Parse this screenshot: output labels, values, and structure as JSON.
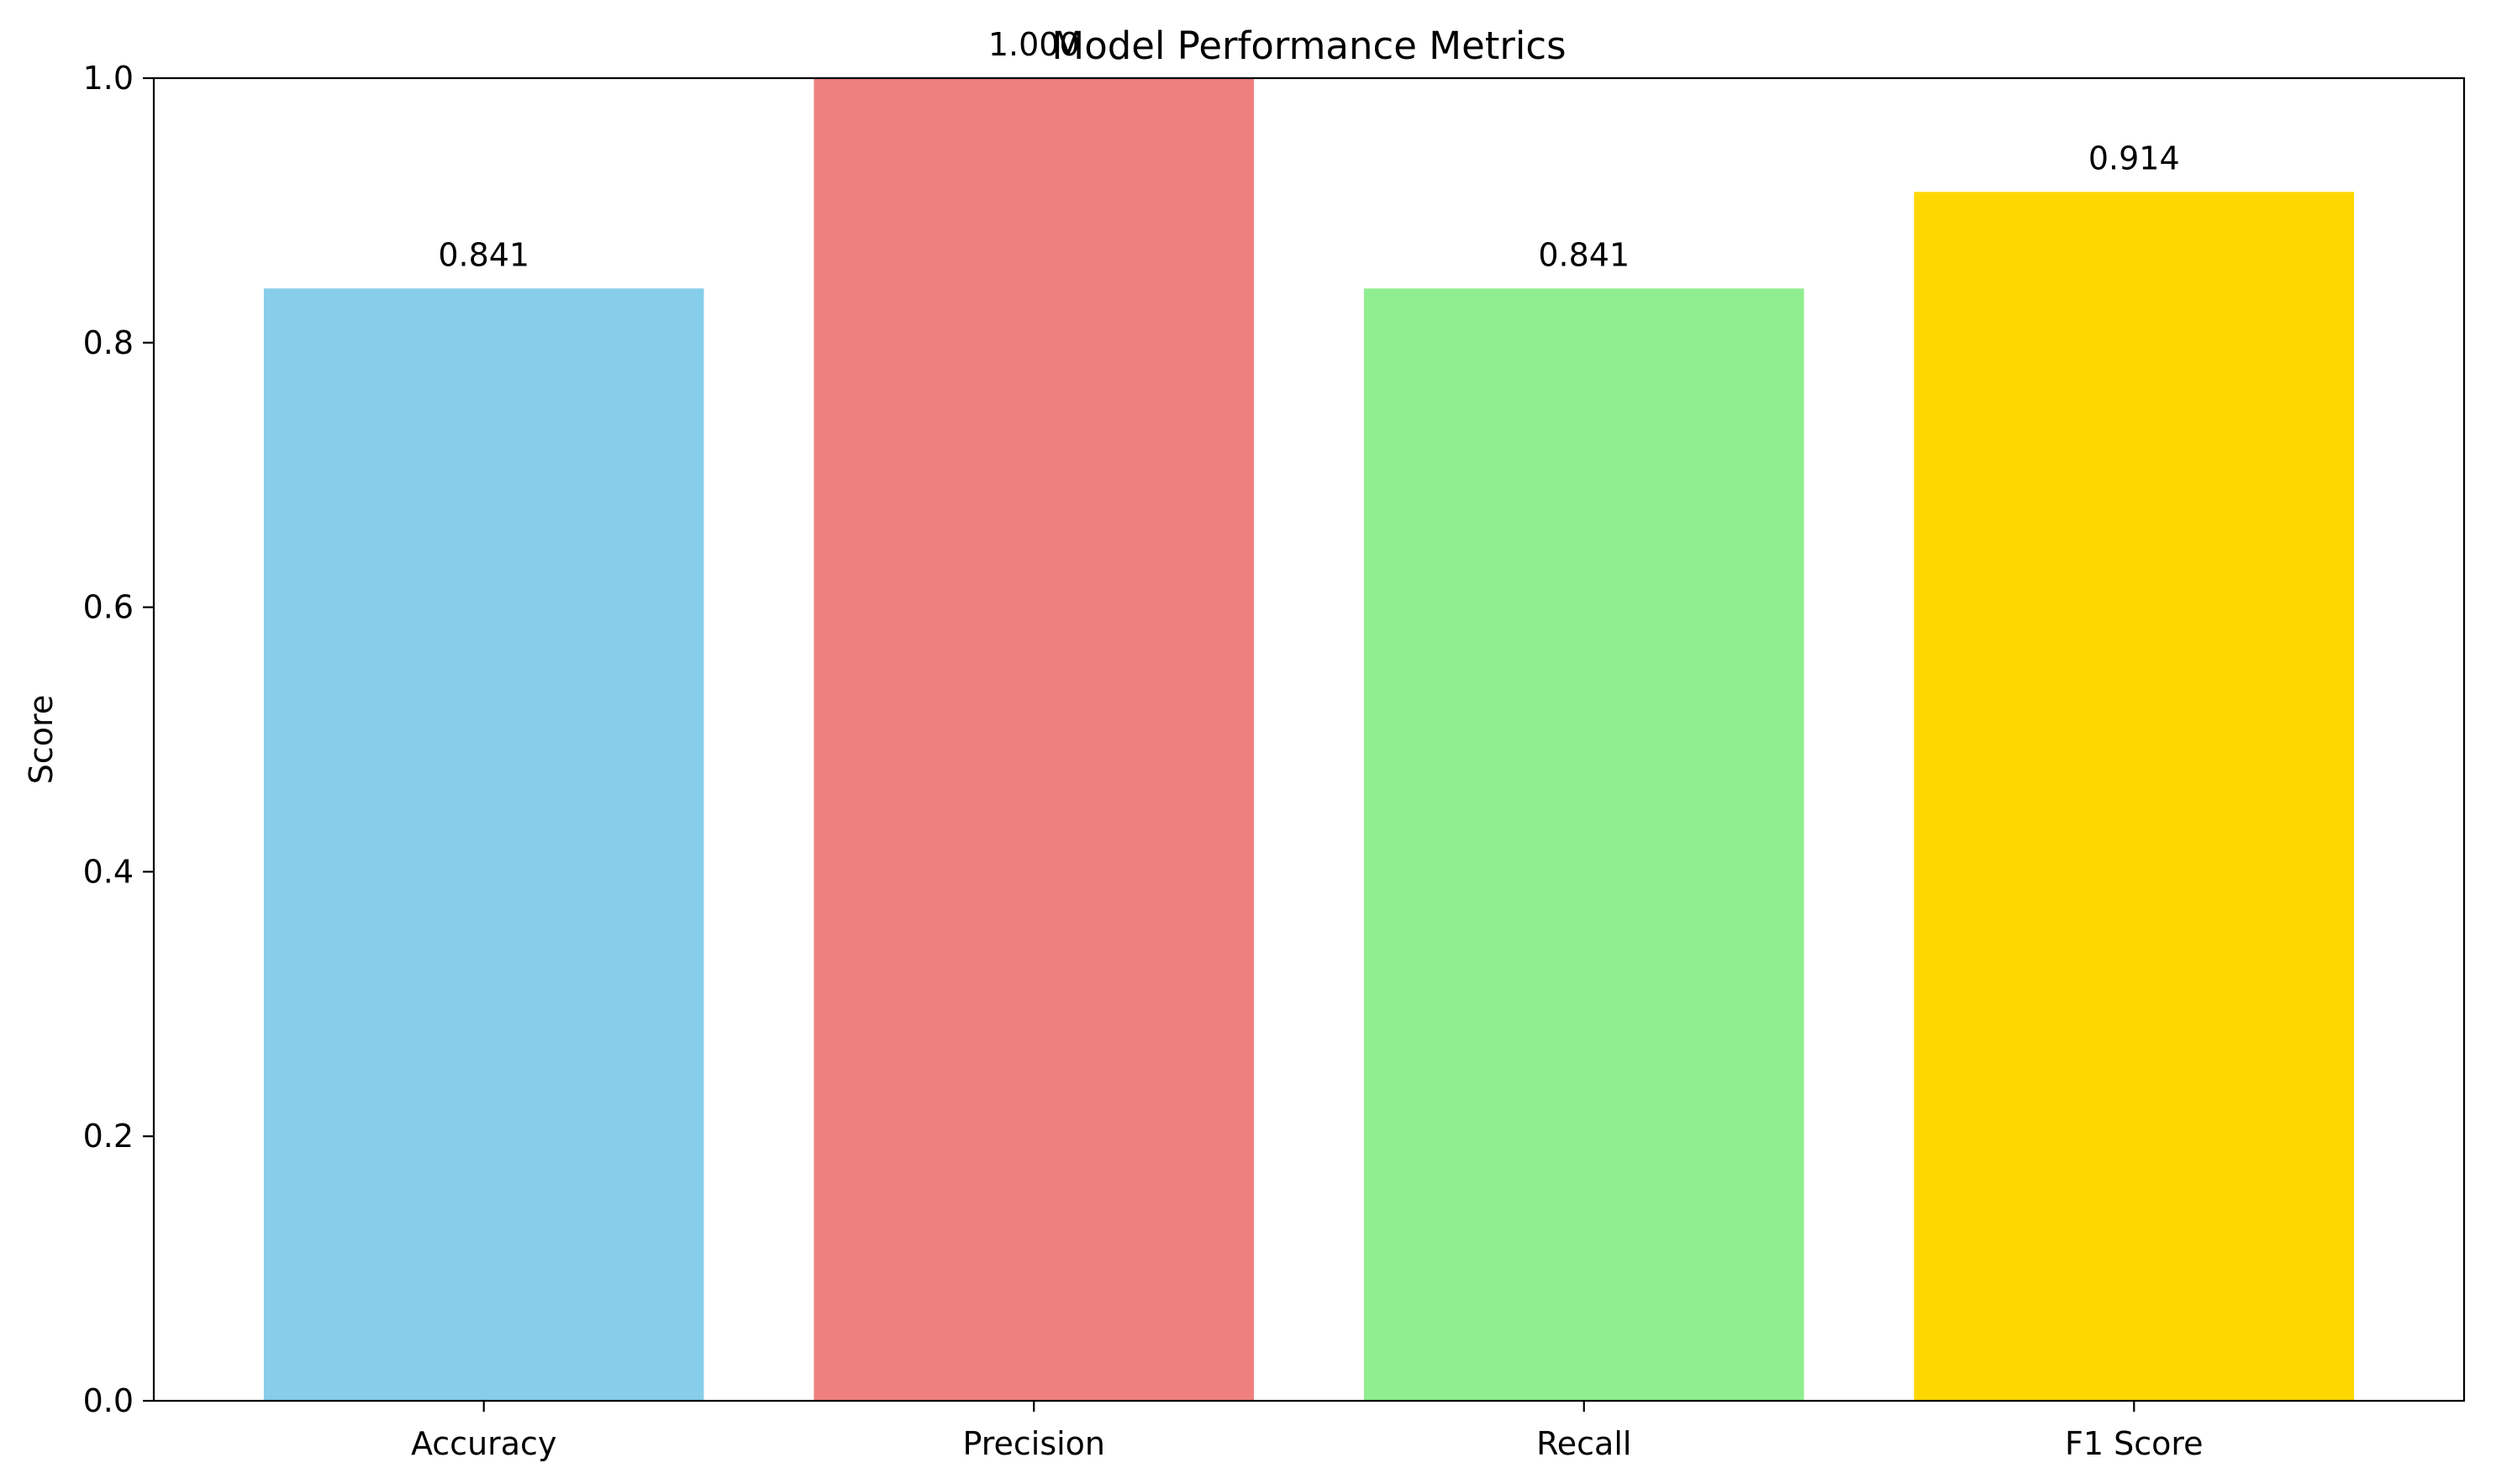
{
  "chart_data": {
    "type": "bar",
    "title": "Model Performance Metrics",
    "xlabel": "",
    "ylabel": "Score",
    "categories": [
      "Accuracy",
      "Precision",
      "Recall",
      "F1 Score"
    ],
    "values": [
      0.841,
      1.0,
      0.841,
      0.914
    ],
    "value_labels": [
      "0.841",
      "1.000",
      "0.841",
      "0.914"
    ],
    "colors": [
      "#87CEEB",
      "#F08080",
      "#90EE90",
      "#FFD700"
    ],
    "ylim": [
      0,
      1.0
    ],
    "yticks": [
      0.0,
      0.2,
      0.4,
      0.6,
      0.8,
      1.0
    ],
    "ytick_labels": [
      "0.0",
      "0.2",
      "0.4",
      "0.6",
      "0.8",
      "1.0"
    ],
    "grid": false,
    "legend": "none"
  }
}
